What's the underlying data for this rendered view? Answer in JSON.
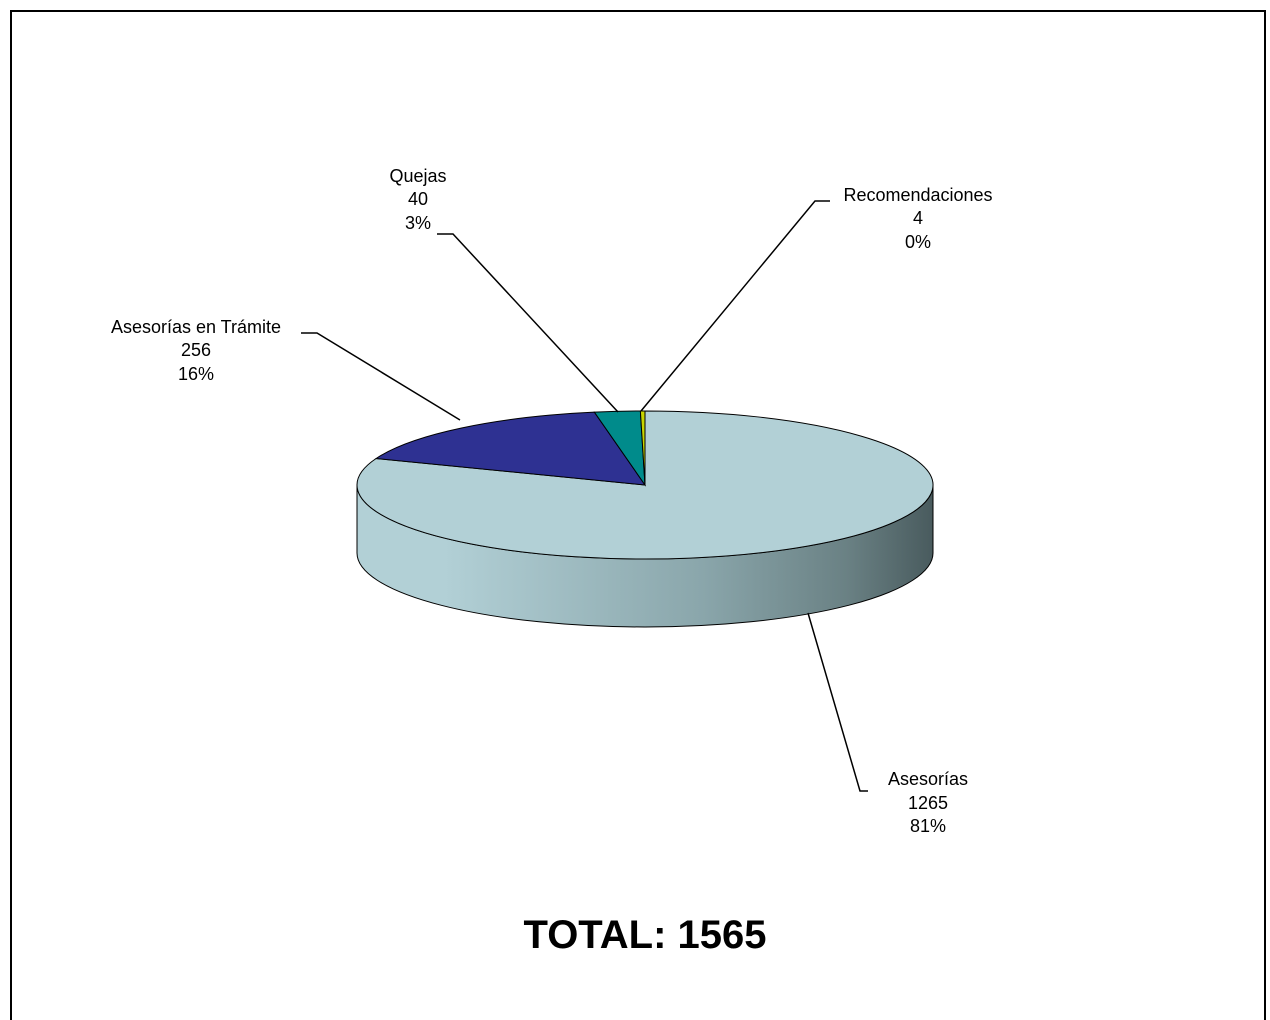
{
  "chart_data": {
    "type": "pie",
    "style": "3d",
    "start_angle_deg": 90,
    "direction": "clockwise",
    "slices": [
      {
        "name": "Asesorías",
        "value": 1265,
        "percent": "81%",
        "color": "#b2d0d6"
      },
      {
        "name": "Asesorías en Trámite",
        "value": 256,
        "percent": "16%",
        "color": "#2e3192"
      },
      {
        "name": "Quejas",
        "value": 40,
        "percent": "3%",
        "color": "#008b8b"
      },
      {
        "name": "Recomendaciones",
        "value": 4,
        "percent": "0%",
        "color": "#c8d400"
      }
    ],
    "side_colors": {
      "light": "#b2d0d6",
      "dark": "#495b5e"
    },
    "legend": "none",
    "total_label": "TOTAL: 1565"
  }
}
